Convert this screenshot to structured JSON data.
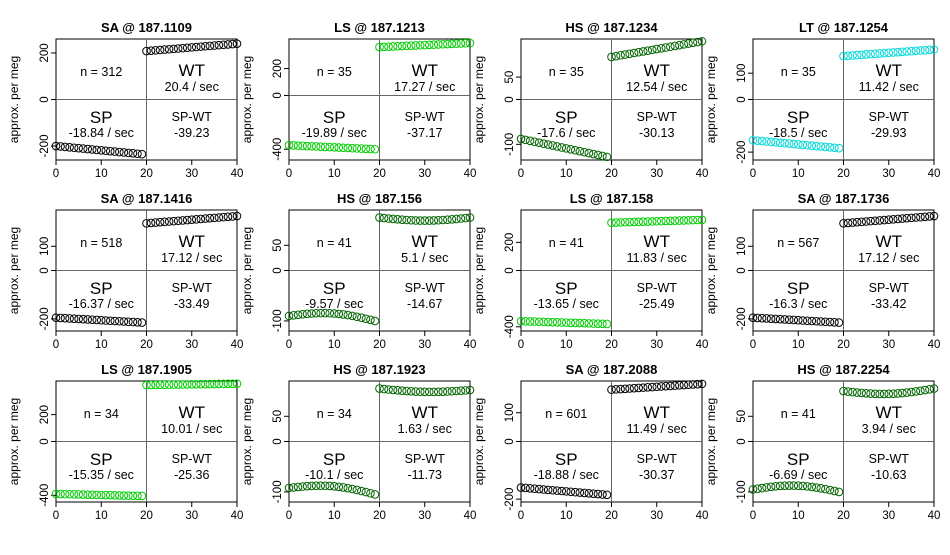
{
  "figure": {
    "ylabel": "approx. per meg",
    "wt_label": "WT",
    "sp_label": "SP",
    "diff_label": "SP-WT"
  },
  "colors": {
    "black_series": "#000000",
    "green_series": "#00cc00",
    "darkgreen_series": "#006400",
    "cyan_series": "#00d8d8",
    "axis": "#000000",
    "divider": "#666666"
  },
  "chart_data": [
    {
      "type": "scatter",
      "title": "SA @ 187.1109",
      "n_label": "n = 312",
      "wt_rate": "20.4 / sec",
      "sp_rate": "-18.84 / sec",
      "diff": "-39.23",
      "color": "black_series",
      "xlim": [
        0,
        40
      ],
      "ylim": [
        -260,
        260
      ],
      "xticks": [
        "0",
        "10",
        "20",
        "30",
        "40"
      ],
      "yticks": [
        {
          "v": -200,
          "label": "-200"
        },
        {
          "v": 0,
          "label": "0"
        },
        {
          "v": 200,
          "label": "200"
        }
      ],
      "sp_start": -200,
      "sp_end": -235,
      "wt_start": 208,
      "wt_end": 240,
      "sp_wave": 0,
      "wt_wave": 0
    },
    {
      "type": "scatter",
      "title": "LS @ 187.1213",
      "n_label": "n = 35",
      "wt_rate": "17.27 / sec",
      "sp_rate": "-19.89 / sec",
      "diff": "-37.17",
      "color": "green_series",
      "xlim": [
        0,
        40
      ],
      "ylim": [
        -480,
        420
      ],
      "xticks": [
        "0",
        "10",
        "20",
        "30",
        "40"
      ],
      "yticks": [
        {
          "v": -400,
          "label": "-400"
        },
        {
          "v": 0,
          "label": "0"
        },
        {
          "v": 200,
          "label": "200"
        }
      ],
      "sp_start": -370,
      "sp_end": -400,
      "wt_start": 360,
      "wt_end": 390,
      "sp_wave": 0,
      "wt_wave": 0
    },
    {
      "type": "scatter",
      "title": "HS @ 187.1234",
      "n_label": "n = 35",
      "wt_rate": "12.54 / sec",
      "sp_rate": "-17.6 / sec",
      "diff": "-30.13",
      "color": "darkgreen_series",
      "xlim": [
        0,
        40
      ],
      "ylim": [
        -135,
        135
      ],
      "xticks": [
        "0",
        "10",
        "20",
        "30",
        "40"
      ],
      "yticks": [
        {
          "v": -100,
          "label": "-100"
        },
        {
          "v": 0,
          "label": "0"
        },
        {
          "v": 50,
          "label": "50"
        }
      ],
      "sp_start": -88,
      "sp_end": -128,
      "wt_start": 95,
      "wt_end": 130,
      "sp_wave": 0,
      "wt_wave": 0
    },
    {
      "type": "scatter",
      "title": "LT @ 187.1254",
      "n_label": "n = 35",
      "wt_rate": "11.42 / sec",
      "sp_rate": "-18.5 / sec",
      "diff": "-29.93",
      "color": "cyan_series",
      "xlim": [
        0,
        40
      ],
      "ylim": [
        -230,
        230
      ],
      "xticks": [
        "0",
        "10",
        "20",
        "30",
        "40"
      ],
      "yticks": [
        {
          "v": -200,
          "label": "-200"
        },
        {
          "v": 0,
          "label": "0"
        },
        {
          "v": 100,
          "label": "100"
        }
      ],
      "sp_start": -155,
      "sp_end": -185,
      "wt_start": 165,
      "wt_end": 190,
      "sp_wave": 0,
      "wt_wave": 0
    },
    {
      "type": "scatter",
      "title": "SA @ 187.1416",
      "n_label": "n = 518",
      "wt_rate": "17.12 / sec",
      "sp_rate": "-16.37 / sec",
      "diff": "-33.49",
      "color": "black_series",
      "xlim": [
        0,
        40
      ],
      "ylim": [
        -250,
        250
      ],
      "xticks": [
        "0",
        "10",
        "20",
        "30",
        "40"
      ],
      "yticks": [
        {
          "v": -200,
          "label": "-200"
        },
        {
          "v": 0,
          "label": "0"
        },
        {
          "v": 100,
          "label": "100"
        }
      ],
      "sp_start": -195,
      "sp_end": -215,
      "wt_start": 195,
      "wt_end": 225,
      "sp_wave": 0,
      "wt_wave": 0
    },
    {
      "type": "scatter",
      "title": "HS @ 187.156",
      "n_label": "n = 41",
      "wt_rate": "5.1 / sec",
      "sp_rate": "-9.57 / sec",
      "diff": "-14.67",
      "color": "darkgreen_series",
      "xlim": [
        0,
        40
      ],
      "ylim": [
        -120,
        120
      ],
      "xticks": [
        "0",
        "10",
        "20",
        "30",
        "40"
      ],
      "yticks": [
        {
          "v": -100,
          "label": "-100"
        },
        {
          "v": 0,
          "label": "0"
        },
        {
          "v": 50,
          "label": "50"
        }
      ],
      "sp_start": -90,
      "sp_end": -100,
      "wt_start": 105,
      "wt_end": 105,
      "sp_wave": 10,
      "wt_wave": 6
    },
    {
      "type": "scatter",
      "title": "LS @ 187.158",
      "n_label": "n = 41",
      "wt_rate": "11.83 / sec",
      "sp_rate": "-13.65 / sec",
      "diff": "-25.49",
      "color": "green_series",
      "xlim": [
        0,
        40
      ],
      "ylim": [
        -430,
        430
      ],
      "xticks": [
        "0",
        "10",
        "20",
        "30",
        "40"
      ],
      "yticks": [
        {
          "v": -400,
          "label": "-400"
        },
        {
          "v": 0,
          "label": "0"
        },
        {
          "v": 200,
          "label": "200"
        }
      ],
      "sp_start": -360,
      "sp_end": -380,
      "wt_start": 340,
      "wt_end": 360,
      "sp_wave": 0,
      "wt_wave": 0
    },
    {
      "type": "scatter",
      "title": "SA @ 187.1736",
      "n_label": "n = 567",
      "wt_rate": "17.12 / sec",
      "sp_rate": "-16.3 / sec",
      "diff": "-33.42",
      "color": "black_series",
      "xlim": [
        0,
        40
      ],
      "ylim": [
        -250,
        250
      ],
      "xticks": [
        "0",
        "10",
        "20",
        "30",
        "40"
      ],
      "yticks": [
        {
          "v": -200,
          "label": "-200"
        },
        {
          "v": 0,
          "label": "0"
        },
        {
          "v": 100,
          "label": "100"
        }
      ],
      "sp_start": -195,
      "sp_end": -215,
      "wt_start": 195,
      "wt_end": 225,
      "sp_wave": 0,
      "wt_wave": 0
    },
    {
      "type": "scatter",
      "title": "LS @ 187.1905",
      "n_label": "n = 34",
      "wt_rate": "10.01 / sec",
      "sp_rate": "-15.35 / sec",
      "diff": "-25.36",
      "color": "green_series",
      "xlim": [
        0,
        40
      ],
      "ylim": [
        -450,
        450
      ],
      "xticks": [
        "0",
        "10",
        "20",
        "30",
        "40"
      ],
      "yticks": [
        {
          "v": -400,
          "label": "-400"
        },
        {
          "v": 0,
          "label": "0"
        },
        {
          "v": 200,
          "label": "200"
        }
      ],
      "sp_start": -390,
      "sp_end": -405,
      "wt_start": 420,
      "wt_end": 430,
      "sp_wave": 0,
      "wt_wave": 0
    },
    {
      "type": "scatter",
      "title": "HS @ 187.1923",
      "n_label": "n = 34",
      "wt_rate": "1.63 / sec",
      "sp_rate": "-10.1 / sec",
      "diff": "-11.73",
      "color": "darkgreen_series",
      "xlim": [
        0,
        40
      ],
      "ylim": [
        -120,
        120
      ],
      "xticks": [
        "0",
        "10",
        "20",
        "30",
        "40"
      ],
      "yticks": [
        {
          "v": -100,
          "label": "-100"
        },
        {
          "v": 0,
          "label": "0"
        },
        {
          "v": 50,
          "label": "50"
        }
      ],
      "sp_start": -92,
      "sp_end": -105,
      "wt_start": 105,
      "wt_end": 102,
      "sp_wave": 10,
      "wt_wave": 5
    },
    {
      "type": "scatter",
      "title": "SA @ 187.2088",
      "n_label": "n = 601",
      "wt_rate": "11.49 / sec",
      "sp_rate": "-18.88 / sec",
      "diff": "-30.37",
      "color": "black_series",
      "xlim": [
        0,
        40
      ],
      "ylim": [
        -210,
        210
      ],
      "xticks": [
        "0",
        "10",
        "20",
        "30",
        "40"
      ],
      "yticks": [
        {
          "v": -200,
          "label": "-200"
        },
        {
          "v": 0,
          "label": "0"
        },
        {
          "v": 100,
          "label": "100"
        }
      ],
      "sp_start": -160,
      "sp_end": -185,
      "wt_start": 180,
      "wt_end": 200,
      "sp_wave": 0,
      "wt_wave": 0
    },
    {
      "type": "scatter",
      "title": "HS @ 187.2254",
      "n_label": "n = 41",
      "wt_rate": "3.94 / sec",
      "sp_rate": "-6.69 / sec",
      "diff": "-10.63",
      "color": "darkgreen_series",
      "xlim": [
        0,
        40
      ],
      "ylim": [
        -120,
        120
      ],
      "xticks": [
        "0",
        "10",
        "20",
        "30",
        "40"
      ],
      "yticks": [
        {
          "v": -100,
          "label": "-100"
        },
        {
          "v": 0,
          "label": "0"
        },
        {
          "v": 50,
          "label": "50"
        }
      ],
      "sp_start": -95,
      "sp_end": -100,
      "wt_start": 100,
      "wt_end": 105,
      "sp_wave": 10,
      "wt_wave": 8
    }
  ]
}
